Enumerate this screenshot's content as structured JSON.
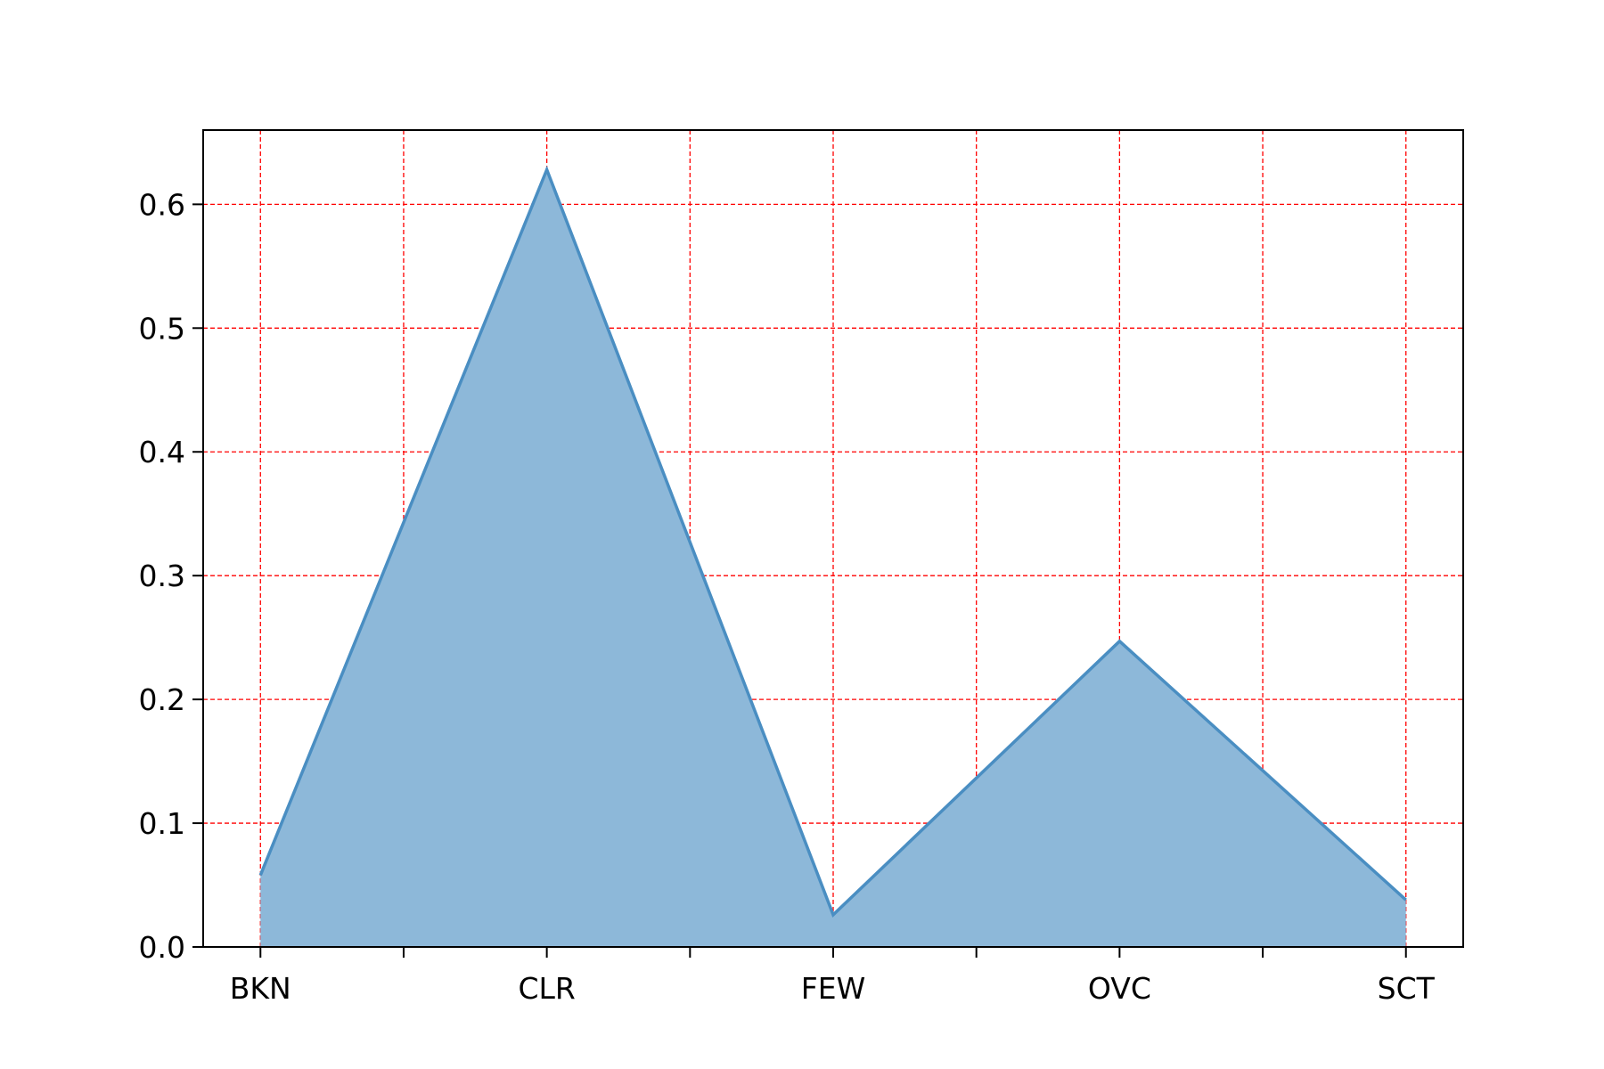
{
  "chart_data": {
    "type": "area",
    "categories": [
      "BKN",
      "CLR",
      "FEW",
      "OVC",
      "SCT"
    ],
    "values": [
      0.058,
      0.628,
      0.026,
      0.247,
      0.038
    ],
    "ylim": [
      0.0,
      0.66
    ],
    "yticks": [
      0.0,
      0.1,
      0.2,
      0.3,
      0.4,
      0.5,
      0.6
    ],
    "ytick_labels": [
      "0.0",
      "0.1",
      "0.2",
      "0.3",
      "0.4",
      "0.5",
      "0.6"
    ],
    "xgrid_positions": [
      0,
      0.5,
      1,
      1.5,
      2,
      2.5,
      3,
      3.5,
      4
    ],
    "grid": true,
    "colors": {
      "fill": "#8db8d9",
      "line": "#4a8ec2",
      "grid": "#ff0000",
      "axes": "#000000"
    }
  }
}
